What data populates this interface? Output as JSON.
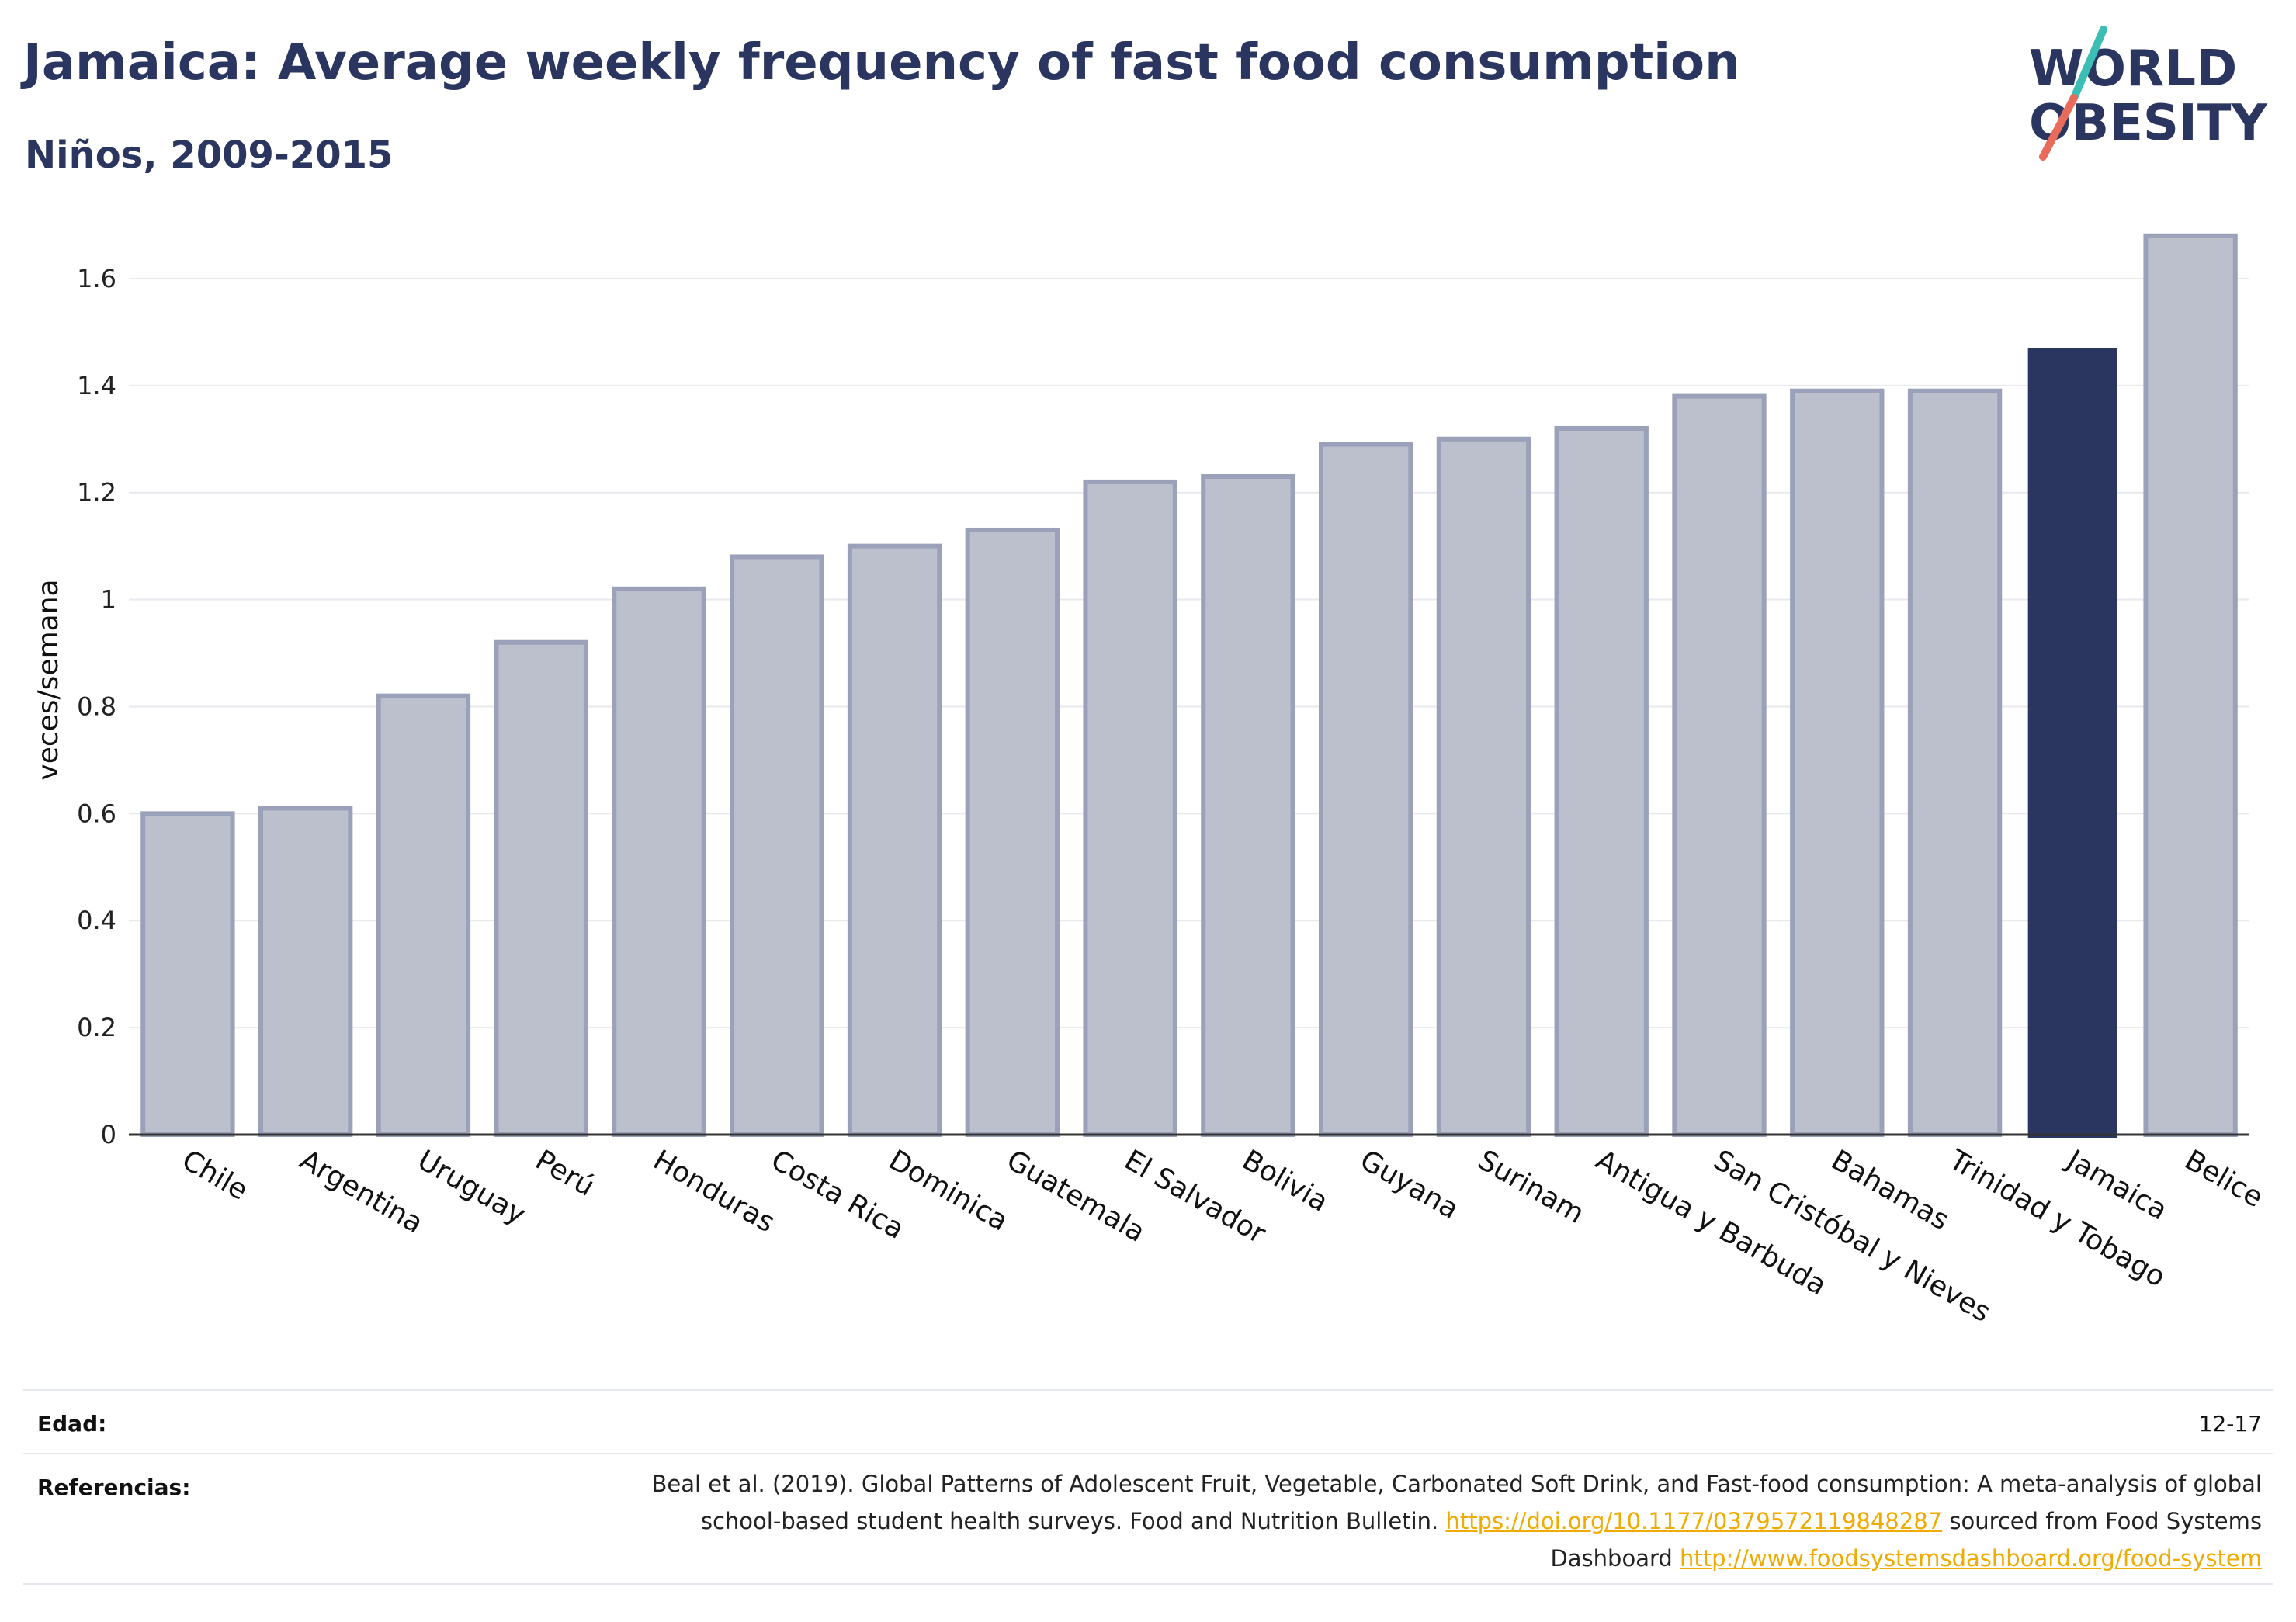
{
  "header": {
    "title": "Jamaica: Average weekly frequency of fast food consumption",
    "subtitle": "Niños, 2009-2015"
  },
  "logo": {
    "line1": "WORLD",
    "line2": "OBESITY",
    "colors": {
      "text": "#2a365f",
      "slash_top": "#3bbfb5",
      "slash_bottom": "#e86b5c"
    }
  },
  "chart_data": {
    "type": "bar",
    "ylabel": "veces/semana",
    "xlabel": "",
    "ylim": [
      0,
      1.7
    ],
    "yticks": [
      0,
      0.2,
      0.4,
      0.6,
      0.8,
      1,
      1.2,
      1.4,
      1.6
    ],
    "ytick_labels": [
      "0",
      "0.2",
      "0.4",
      "0.6",
      "0.8",
      "1",
      "1.2",
      "1.4",
      "1.6"
    ],
    "grid": true,
    "categories": [
      "Chile",
      "Argentina",
      "Uruguay",
      "Perú",
      "Honduras",
      "Costa Rica",
      "Dominica",
      "Guatemala",
      "El Salvador",
      "Bolivia",
      "Guyana",
      "Surinam",
      "Antigua y Barbuda",
      "San Cristóbal y Nieves",
      "Bahamas",
      "Trinidad y Tobago",
      "Jamaica",
      "Belice"
    ],
    "values": [
      0.6,
      0.61,
      0.82,
      0.92,
      1.02,
      1.08,
      1.1,
      1.13,
      1.22,
      1.23,
      1.29,
      1.3,
      1.32,
      1.38,
      1.39,
      1.39,
      1.47,
      1.68
    ],
    "highlight": "Jamaica",
    "colors": {
      "bar": "#bcc0cd",
      "bar_stroke": "#9ba1b8",
      "highlight": "#2a365f",
      "grid": "#e8e9ee",
      "axis": "#333333"
    }
  },
  "footer": {
    "age_label": "Edad:",
    "age_value": "12-17",
    "refs_label": "Referencias:",
    "ref_text1": "Beal et al. (2019). Global Patterns of Adolescent Fruit, Vegetable, Carbonated Soft Drink, and Fast-food consumption: A meta-analysis of global school-based student health surveys. Food and Nutrition Bulletin.",
    "ref_link1": "https://doi.org/10.1177/0379572119848287",
    "ref_text2": "sourced from Food Systems Dashboard",
    "ref_link2": "http://www.foodsystemsdashboard.org/food-system"
  }
}
